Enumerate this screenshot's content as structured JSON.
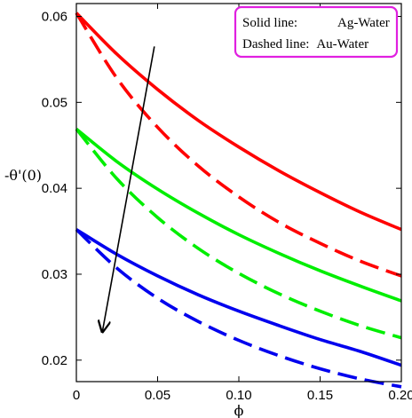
{
  "chart_data": {
    "type": "line",
    "title": "",
    "xlabel": "ϕ",
    "ylabel": "-θ'(0)",
    "xlim": [
      0,
      0.2
    ],
    "ylim": [
      0.0175,
      0.0615
    ],
    "grid": false,
    "legend_position": "top-right",
    "x_ticks": [
      {
        "value": 0,
        "label": "0"
      },
      {
        "value": 0.05,
        "label": "0.05"
      },
      {
        "value": 0.1,
        "label": "0.10"
      },
      {
        "value": 0.15,
        "label": "0.15"
      },
      {
        "value": 0.2,
        "label": "0.20"
      }
    ],
    "y_ticks": [
      {
        "value": 0.02,
        "label": "0.02"
      },
      {
        "value": 0.03,
        "label": "0.03"
      },
      {
        "value": 0.04,
        "label": "0.04"
      },
      {
        "value": 0.05,
        "label": "0.05"
      },
      {
        "value": 0.06,
        "label": "0.06"
      }
    ],
    "legend": {
      "border_color": "#e020e0",
      "lines": [
        {
          "prefix": "Solid line:",
          "value": "Ag-Water"
        },
        {
          "prefix": "Dashed line:",
          "value": "Au-Water"
        }
      ]
    },
    "series": [
      {
        "color": "#ff0000",
        "style": "solid",
        "x": [
          0,
          0.025,
          0.05,
          0.075,
          0.1,
          0.125,
          0.15,
          0.175,
          0.2
        ],
        "y": [
          0.0604,
          0.0556,
          0.0515,
          0.0479,
          0.0448,
          0.042,
          0.0395,
          0.0372,
          0.0352
        ]
      },
      {
        "color": "#ff0000",
        "style": "dashed",
        "x": [
          0,
          0.025,
          0.05,
          0.075,
          0.1,
          0.125,
          0.15,
          0.175,
          0.2
        ],
        "y": [
          0.0604,
          0.0528,
          0.0471,
          0.0426,
          0.039,
          0.036,
          0.0336,
          0.0315,
          0.0298
        ]
      },
      {
        "color": "#00ee00",
        "style": "solid",
        "x": [
          0,
          0.025,
          0.05,
          0.075,
          0.1,
          0.125,
          0.15,
          0.175,
          0.2
        ],
        "y": [
          0.0469,
          0.0431,
          0.0399,
          0.0371,
          0.0346,
          0.0324,
          0.0304,
          0.0286,
          0.0269
        ]
      },
      {
        "color": "#00ee00",
        "style": "dashed",
        "x": [
          0,
          0.025,
          0.05,
          0.075,
          0.1,
          0.125,
          0.15,
          0.175,
          0.2
        ],
        "y": [
          0.0469,
          0.0411,
          0.0366,
          0.033,
          0.0301,
          0.0277,
          0.0257,
          0.024,
          0.0226
        ]
      },
      {
        "color": "#0000ee",
        "style": "solid",
        "x": [
          0,
          0.025,
          0.05,
          0.075,
          0.1,
          0.125,
          0.15,
          0.175,
          0.2
        ],
        "y": [
          0.0352,
          0.0323,
          0.0298,
          0.0276,
          0.0257,
          0.024,
          0.0224,
          0.021,
          0.0194
        ]
      },
      {
        "color": "#0000ee",
        "style": "dashed",
        "x": [
          0,
          0.025,
          0.05,
          0.075,
          0.1,
          0.125,
          0.15,
          0.175,
          0.2
        ],
        "y": [
          0.0352,
          0.0307,
          0.0272,
          0.0245,
          0.0223,
          0.0205,
          0.019,
          0.0178,
          0.0169
        ]
      }
    ],
    "arrow": {
      "from": [
        0.048,
        0.0565
      ],
      "to": [
        0.016,
        0.0233
      ]
    }
  }
}
